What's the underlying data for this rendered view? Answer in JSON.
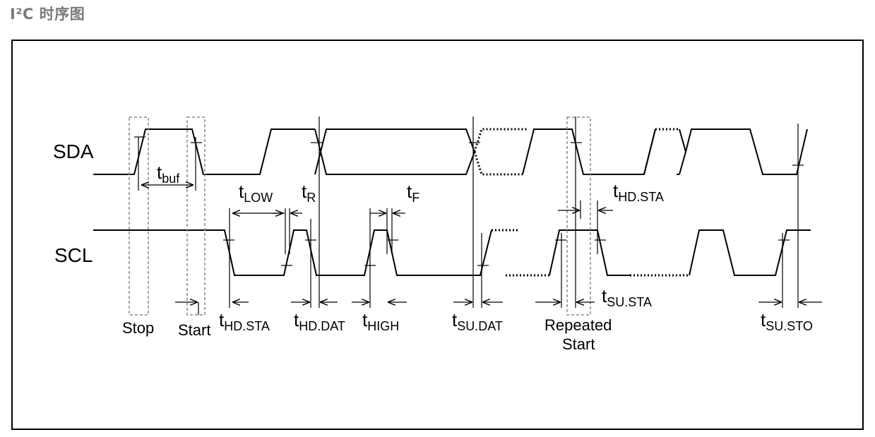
{
  "heading": "I²C 时序图",
  "signals": {
    "sda": "SDA",
    "scl": "SCL"
  },
  "conditions": {
    "stop": "Stop",
    "start": "Start",
    "repeated_start_line1": "Repeated",
    "repeated_start_line2": "Start"
  },
  "timing": {
    "t_buf": {
      "t": "t",
      "sub": "buf"
    },
    "t_low": {
      "t": "t",
      "sub": "LOW"
    },
    "t_r": {
      "t": "t",
      "sub": "R"
    },
    "t_f": {
      "t": "t",
      "sub": "F"
    },
    "t_hd_sta_top": {
      "t": "t",
      "sub": "HD.STA"
    },
    "t_hd_sta": {
      "t": "t",
      "sub": "HD.STA"
    },
    "t_hd_dat": {
      "t": "t",
      "sub": "HD.DAT"
    },
    "t_high": {
      "t": "t",
      "sub": "HIGH"
    },
    "t_su_dat": {
      "t": "t",
      "sub": "SU.DAT"
    },
    "t_su_sta": {
      "t": "t",
      "sub": "SU.STA"
    },
    "t_su_sto": {
      "t": "t",
      "sub": "SU.STO"
    }
  },
  "colors": {
    "line": "#000000",
    "heading": "#7a7a7a",
    "condition_box": "#888888"
  }
}
